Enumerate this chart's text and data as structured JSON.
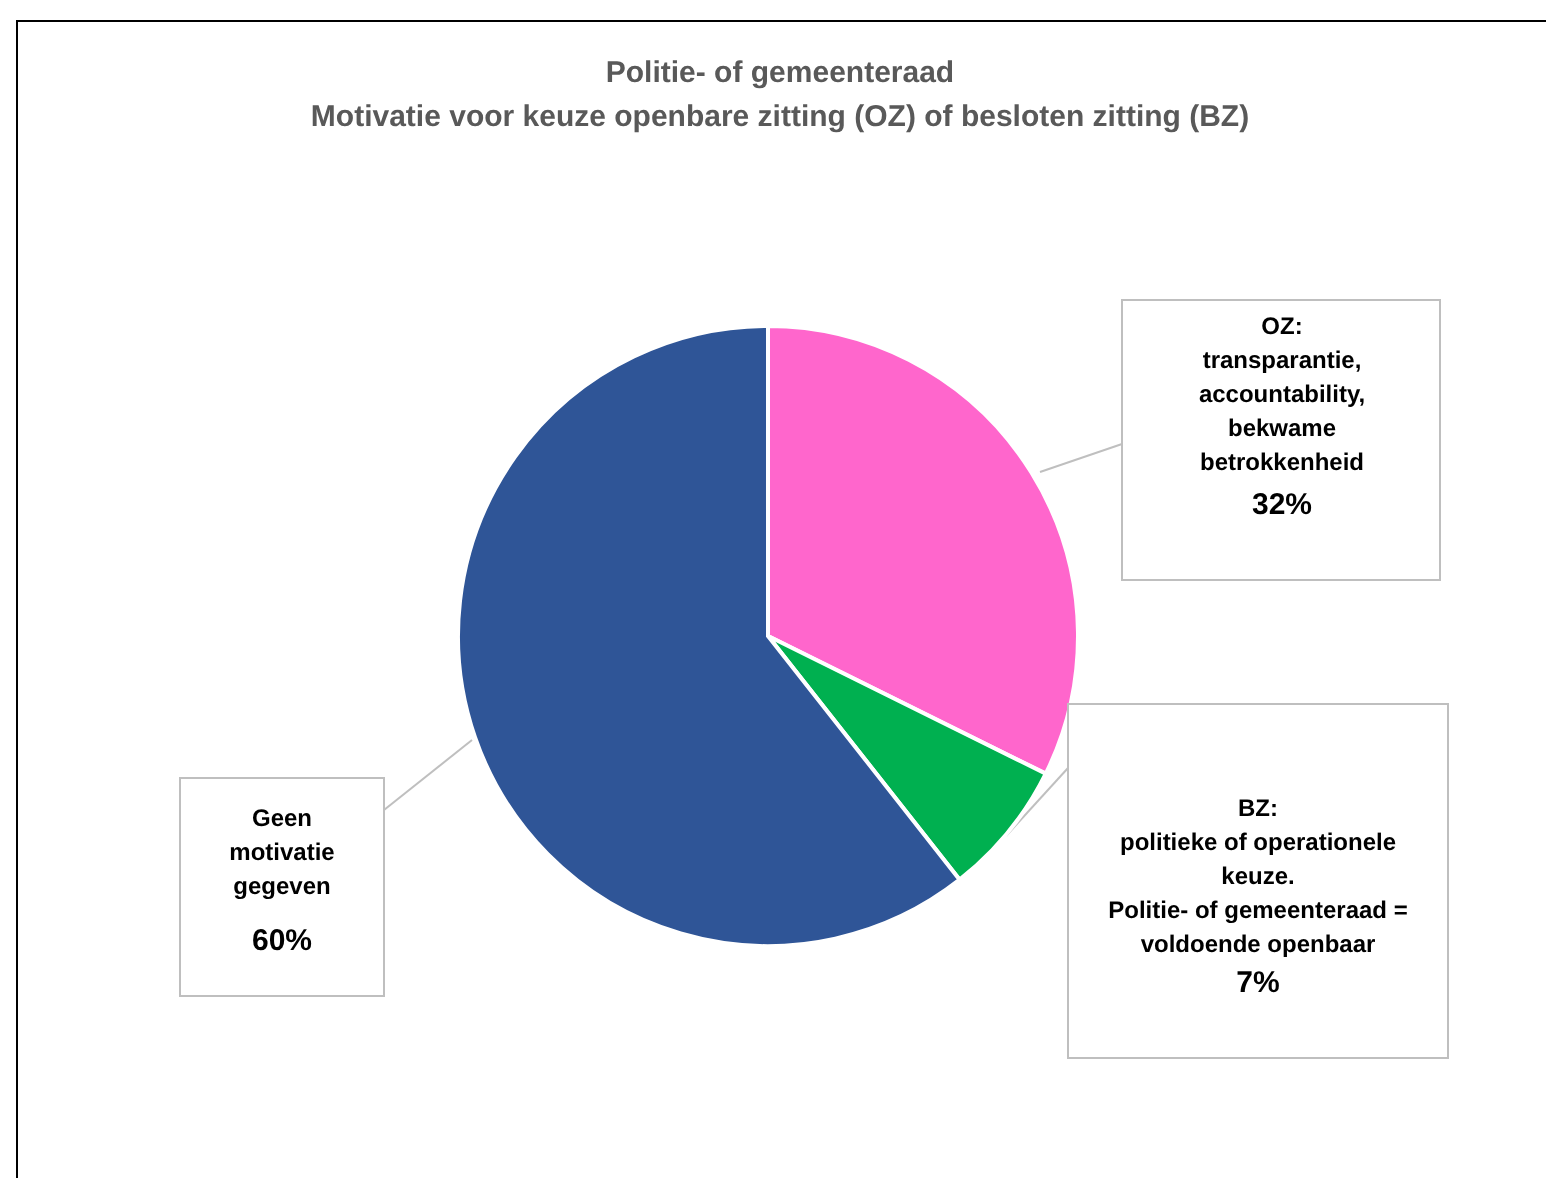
{
  "chart_data": {
    "type": "pie",
    "title": [
      "Politie- of gemeenteraad",
      "Motivatie voor keuze openbare zitting (OZ) of besloten zitting (BZ)"
    ],
    "categories": [
      "OZ:\ntransparantie,\naccountability,\nbekwame\nbetrokkenheid",
      "BZ:\npolitieke of operationele\nkeuze.\nPolitie- of gemeenteraad =\nvoldoende openbaar",
      "Geen\nmotivatie\ngegeven"
    ],
    "values": [
      32,
      7,
      60
    ],
    "value_labels": [
      "32%",
      "7%",
      "60%"
    ],
    "colors": [
      "#ff66cc",
      "#00b050",
      "#2f5597"
    ],
    "legend": false
  }
}
